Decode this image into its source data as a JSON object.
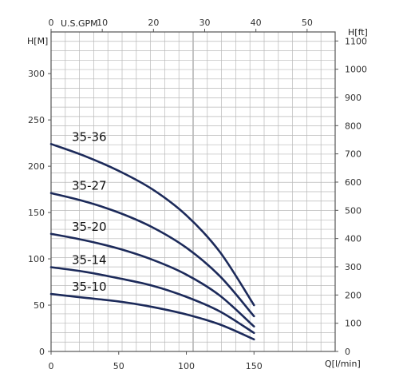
{
  "chart_data": {
    "type": "line",
    "title": "",
    "grid": true,
    "x_bottom": {
      "label": "Q[l/min]",
      "lim": [
        0,
        210
      ],
      "ticks": [
        0,
        50,
        100,
        150
      ]
    },
    "x_top": {
      "label": "U.S.GPM",
      "lim": [
        0,
        55.48
      ],
      "ticks": [
        0,
        10,
        20,
        30,
        40,
        50
      ]
    },
    "y_left": {
      "label": "H[M]",
      "lim": [
        0,
        345
      ],
      "ticks": [
        0,
        50,
        100,
        150,
        200,
        250,
        300
      ]
    },
    "y_right": {
      "label": "H[ft]",
      "lim": [
        0,
        1132
      ],
      "ticks": [
        0,
        100,
        200,
        300,
        400,
        500,
        600,
        700,
        800,
        900,
        1000,
        1100
      ]
    },
    "series": [
      {
        "name": "35-36",
        "x": [
          0,
          25,
          50,
          75,
          100,
          125,
          150
        ],
        "y": [
          224,
          211,
          195,
          175,
          147,
          107,
          50
        ]
      },
      {
        "name": "35-27",
        "x": [
          0,
          25,
          50,
          75,
          100,
          125,
          150
        ],
        "y": [
          171,
          162,
          150,
          134,
          112,
          81,
          38
        ]
      },
      {
        "name": "35-20",
        "x": [
          0,
          25,
          50,
          75,
          100,
          125,
          150
        ],
        "y": [
          127,
          120,
          111,
          99,
          83,
          60,
          27
        ]
      },
      {
        "name": "35-14",
        "x": [
          0,
          25,
          50,
          75,
          100,
          125,
          150
        ],
        "y": [
          91,
          86,
          79,
          71,
          59,
          43,
          20
        ]
      },
      {
        "name": "35-10",
        "x": [
          0,
          25,
          50,
          75,
          100,
          125,
          150
        ],
        "y": [
          62,
          58,
          54,
          48,
          40,
          29,
          13
        ]
      }
    ],
    "colors": {
      "curve": "#1c2a5a",
      "grid": "#b9b9b9",
      "axis": "#555555"
    }
  }
}
